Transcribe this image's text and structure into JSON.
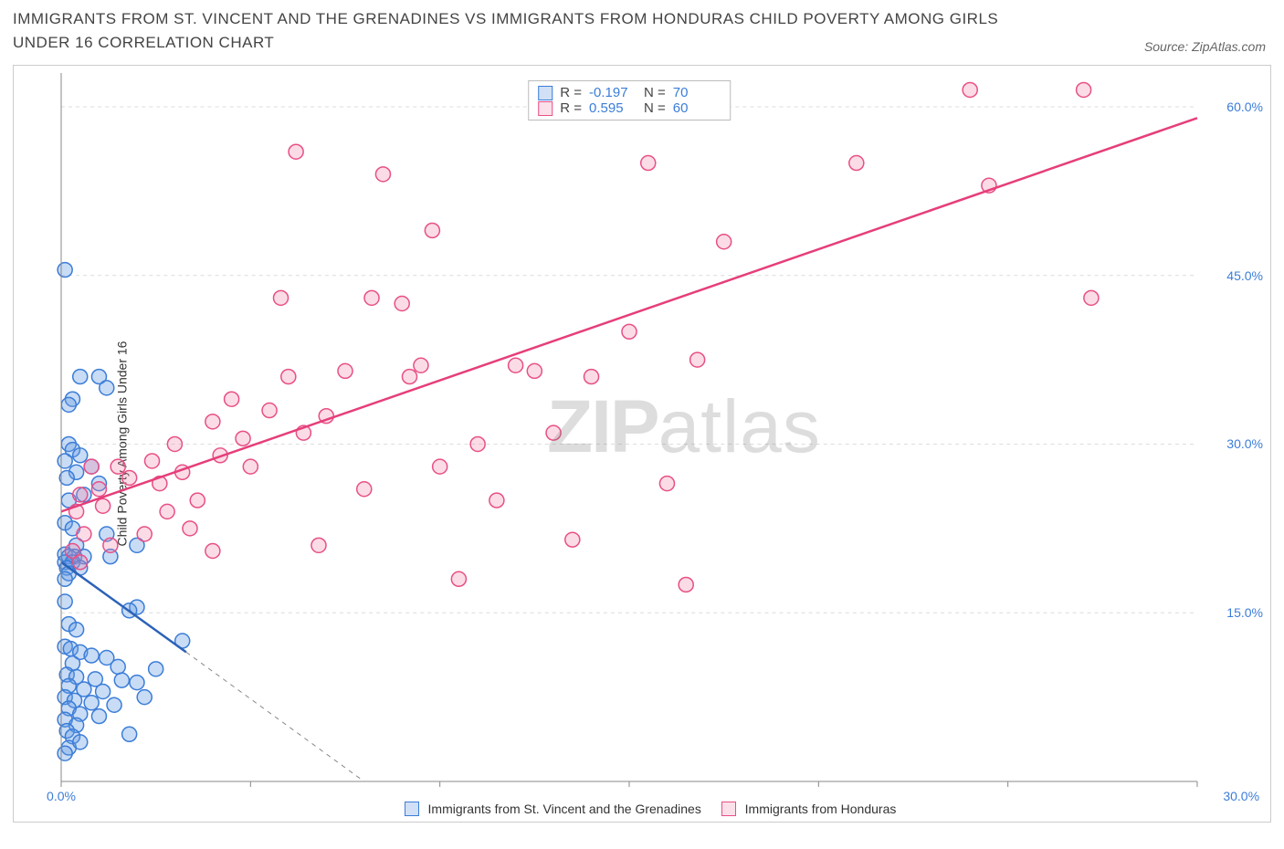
{
  "header": {
    "title": "IMMIGRANTS FROM ST. VINCENT AND THE GRENADINES VS IMMIGRANTS FROM HONDURAS CHILD POVERTY AMONG GIRLS UNDER 16 CORRELATION CHART",
    "source_prefix": "Source: ",
    "source_name": "ZipAtlas.com"
  },
  "watermark": {
    "bold": "ZIP",
    "rest": "atlas"
  },
  "chart": {
    "type": "scatter",
    "background_color": "#ffffff",
    "grid_color": "#dcdcdc",
    "axis_color": "#888888",
    "y_axis_label": "Child Poverty Among Girls Under 16",
    "xlim": [
      0,
      30
    ],
    "ylim": [
      0,
      63
    ],
    "x_ticks": [
      0,
      5,
      10,
      15,
      20,
      25,
      30
    ],
    "x_tick_labels": {
      "0": "0.0%",
      "30": "30.0%"
    },
    "y_ticks": [
      15,
      30,
      45,
      60
    ],
    "y_tick_labels": {
      "15": "15.0%",
      "30": "30.0%",
      "45": "45.0%",
      "60": "60.0%"
    },
    "point_radius": 8,
    "point_stroke_width": 1.5,
    "trend_line_width": 2.5,
    "series": [
      {
        "key": "svg",
        "label": "Immigrants from St. Vincent and the Grenadines",
        "fill": "rgba(100,155,225,0.35)",
        "stroke": "#3b7dd8",
        "trend_color": "#2b62b8",
        "R": "-0.197",
        "N": "70",
        "trend": {
          "x1": 0,
          "y1": 19.5,
          "x2": 3.3,
          "y2": 11.5
        },
        "trend_dash": {
          "x1": 3.3,
          "y1": 11.5,
          "x2": 8.0,
          "y2": 0
        },
        "points": [
          [
            0.1,
            45.5
          ],
          [
            0.5,
            36
          ],
          [
            1.0,
            36
          ],
          [
            0.3,
            34
          ],
          [
            0.2,
            33.5
          ],
          [
            1.2,
            35
          ],
          [
            0.2,
            30
          ],
          [
            0.3,
            29.5
          ],
          [
            0.5,
            29
          ],
          [
            0.1,
            28.5
          ],
          [
            0.8,
            28
          ],
          [
            0.4,
            27.5
          ],
          [
            0.15,
            27
          ],
          [
            1.0,
            26.5
          ],
          [
            0.6,
            25.5
          ],
          [
            0.2,
            25
          ],
          [
            0.1,
            23
          ],
          [
            0.3,
            22.5
          ],
          [
            1.2,
            22
          ],
          [
            0.4,
            21
          ],
          [
            0.1,
            20.2
          ],
          [
            0.2,
            20
          ],
          [
            0.35,
            20
          ],
          [
            0.6,
            20
          ],
          [
            0.1,
            19.5
          ],
          [
            0.3,
            19.5
          ],
          [
            0.15,
            19
          ],
          [
            0.5,
            19
          ],
          [
            0.2,
            18.5
          ],
          [
            0.1,
            18
          ],
          [
            2.0,
            21
          ],
          [
            1.3,
            20
          ],
          [
            0.1,
            16
          ],
          [
            2.0,
            15.5
          ],
          [
            1.8,
            15.2
          ],
          [
            0.2,
            14
          ],
          [
            0.4,
            13.5
          ],
          [
            3.2,
            12.5
          ],
          [
            0.1,
            12
          ],
          [
            0.25,
            11.8
          ],
          [
            0.5,
            11.5
          ],
          [
            0.8,
            11.2
          ],
          [
            1.2,
            11
          ],
          [
            0.3,
            10.5
          ],
          [
            1.5,
            10.2
          ],
          [
            2.5,
            10
          ],
          [
            0.15,
            9.5
          ],
          [
            0.4,
            9.3
          ],
          [
            0.9,
            9.1
          ],
          [
            1.6,
            9
          ],
          [
            2.0,
            8.8
          ],
          [
            0.2,
            8.5
          ],
          [
            0.6,
            8.2
          ],
          [
            1.1,
            8
          ],
          [
            0.1,
            7.5
          ],
          [
            0.35,
            7.2
          ],
          [
            0.8,
            7
          ],
          [
            1.4,
            6.8
          ],
          [
            0.2,
            6.5
          ],
          [
            0.5,
            6
          ],
          [
            2.2,
            7.5
          ],
          [
            0.1,
            5.5
          ],
          [
            0.4,
            5
          ],
          [
            0.15,
            4.5
          ],
          [
            0.3,
            4
          ],
          [
            1.0,
            5.8
          ],
          [
            0.2,
            3
          ],
          [
            0.5,
            3.5
          ],
          [
            1.8,
            4.2
          ],
          [
            0.1,
            2.5
          ]
        ]
      },
      {
        "key": "hon",
        "label": "Immigrants from Honduras",
        "fill": "rgba(240,130,165,0.28)",
        "stroke": "#e84f86",
        "trend_color": "#e63e7a",
        "R": "0.595",
        "N": "60",
        "trend": {
          "x1": 0,
          "y1": 24,
          "x2": 30,
          "y2": 59
        },
        "points": [
          [
            0.5,
            25.5
          ],
          [
            0.4,
            24
          ],
          [
            0.6,
            22
          ],
          [
            0.8,
            28
          ],
          [
            0.3,
            20.5
          ],
          [
            0.5,
            19.5
          ],
          [
            1.0,
            26
          ],
          [
            1.1,
            24.5
          ],
          [
            1.5,
            28
          ],
          [
            1.8,
            27
          ],
          [
            1.3,
            21
          ],
          [
            2.2,
            22
          ],
          [
            2.4,
            28.5
          ],
          [
            2.6,
            26.5
          ],
          [
            2.8,
            24
          ],
          [
            3.0,
            30
          ],
          [
            3.2,
            27.5
          ],
          [
            3.4,
            22.5
          ],
          [
            4.0,
            32
          ],
          [
            4.2,
            29
          ],
          [
            4.5,
            34
          ],
          [
            4.8,
            30.5
          ],
          [
            5.0,
            28
          ],
          [
            5.5,
            33
          ],
          [
            5.8,
            43
          ],
          [
            6.0,
            36
          ],
          [
            6.2,
            56
          ],
          [
            6.4,
            31
          ],
          [
            7.0,
            32.5
          ],
          [
            7.5,
            36.5
          ],
          [
            8.0,
            26
          ],
          [
            8.2,
            43
          ],
          [
            8.5,
            54
          ],
          [
            9.0,
            42.5
          ],
          [
            9.2,
            36
          ],
          [
            9.5,
            37
          ],
          [
            9.8,
            49
          ],
          [
            10.0,
            28
          ],
          [
            10.5,
            18
          ],
          [
            11.0,
            30
          ],
          [
            11.5,
            25
          ],
          [
            12.0,
            37
          ],
          [
            12.5,
            36.5
          ],
          [
            13.0,
            31
          ],
          [
            13.5,
            21.5
          ],
          [
            14.0,
            36
          ],
          [
            15.0,
            40
          ],
          [
            15.5,
            55
          ],
          [
            16.0,
            26.5
          ],
          [
            16.5,
            17.5
          ],
          [
            16.8,
            37.5
          ],
          [
            17.5,
            48
          ],
          [
            21.0,
            55
          ],
          [
            24.0,
            61.5
          ],
          [
            24.5,
            53
          ],
          [
            27.0,
            61.5
          ],
          [
            27.2,
            43
          ],
          [
            4.0,
            20.5
          ],
          [
            6.8,
            21
          ],
          [
            3.6,
            25
          ]
        ]
      }
    ],
    "legend_labels": {
      "R": "R =",
      "N": "N ="
    }
  },
  "bottom_legend": {
    "series1": "Immigrants from St. Vincent and the Grenadines",
    "series2": "Immigrants from Honduras"
  }
}
